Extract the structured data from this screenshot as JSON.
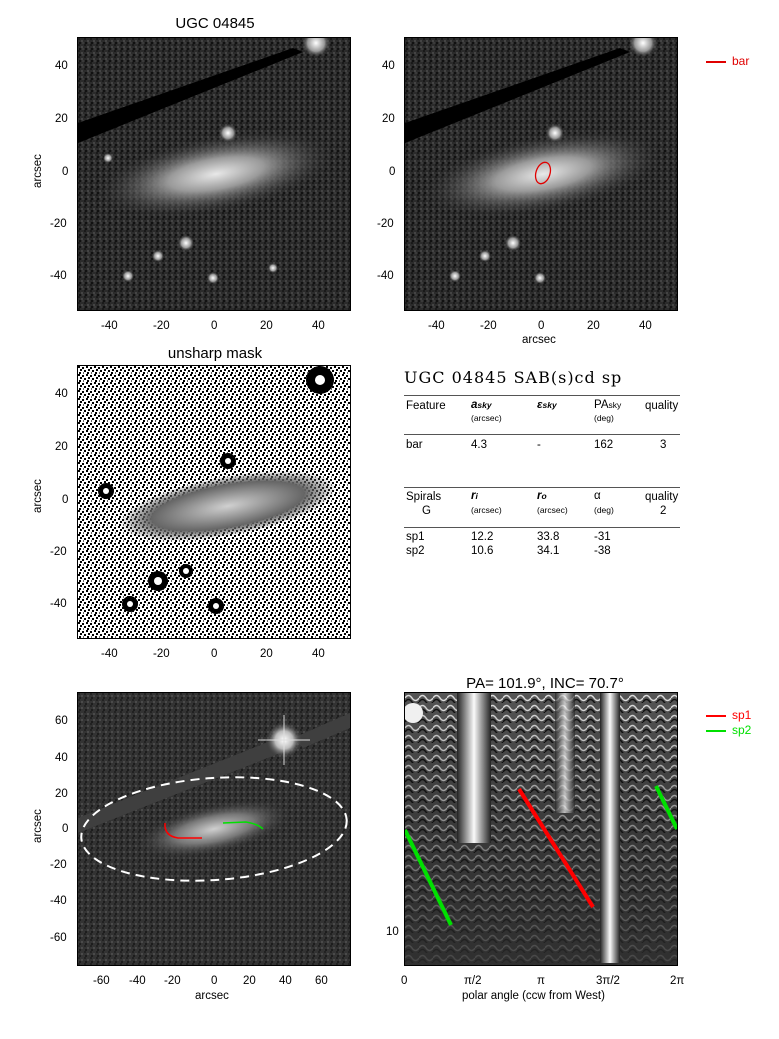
{
  "panels": {
    "image_title": "UGC 04845",
    "unsharp_title": "unsharp mask",
    "polar_title": "PA= 101.9°, INC=  70.7°"
  },
  "axes": {
    "ylabel": "arcsec",
    "xlabel_top_right": "arcsec",
    "xlabel_bottom_left": "arcsec",
    "xlabel_polar": "polar angle (ccw from West)",
    "ticks_50": [
      "40",
      "20",
      "0",
      "-20",
      "-40"
    ],
    "xticks_50": [
      "-40",
      "-20",
      "0",
      "20",
      "40"
    ],
    "yticks_75": [
      "60",
      "40",
      "20",
      "0",
      "-20",
      "-40",
      "-60"
    ],
    "xticks_75": [
      "-60",
      "-40",
      "-20",
      "0",
      "20",
      "40",
      "60"
    ],
    "xticks_polar": [
      "0",
      "π/2",
      "π",
      "3π/2",
      "2π"
    ],
    "ytick_polar": "10"
  },
  "legend": {
    "bar": "bar",
    "sp1": "sp1",
    "sp2": "sp2",
    "bar_color": "#e00000",
    "sp1_color": "#ff0000",
    "sp2_color": "#00e000"
  },
  "table": {
    "heading_main": "UGC 04845  SAB",
    "heading_suffix": "(s)cd sp",
    "bar_header": {
      "feature": "Feature",
      "a": "a",
      "a_sub": "sky",
      "a_unit": "(arcsec)",
      "eps": "ε",
      "eps_sub": "sky",
      "pa": "PA",
      "pa_sub": "sky",
      "pa_unit": "(deg)",
      "quality": "quality"
    },
    "bar_row": {
      "name": "bar",
      "a": "4.3",
      "eps": "-",
      "pa": "162",
      "quality": "3"
    },
    "spiral_header": {
      "feature": "Spirals",
      "feature_sub": "G",
      "ri": "r",
      "ri_sub": "i",
      "ri_unit": "(arcsec)",
      "ro": "r",
      "ro_sub": "o",
      "ro_unit": "(arcsec)",
      "alpha": "α",
      "alpha_unit": "(deg)",
      "quality": "quality",
      "quality_val": "2"
    },
    "spiral_rows": [
      {
        "name": "sp1",
        "ri": "12.2",
        "ro": "33.8",
        "alpha": "-31"
      },
      {
        "name": "sp2",
        "ri": "10.6",
        "ro": "34.1",
        "alpha": "-38"
      }
    ]
  }
}
